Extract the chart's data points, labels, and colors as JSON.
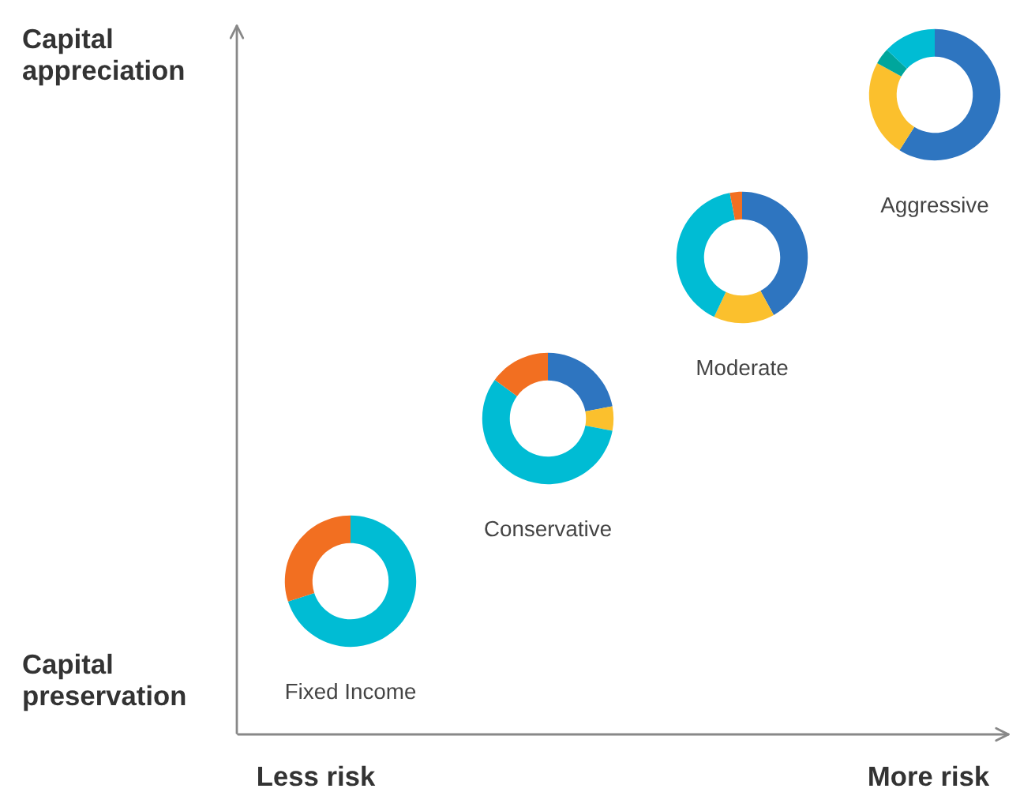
{
  "chart_data": [
    {
      "type": "other",
      "annotations": [
        "Capital\nappreciation",
        "Capital\npreservation",
        "Less risk",
        "More risk"
      ]
    },
    {
      "type": "donut",
      "title": "Fixed Income",
      "categories": [
        null,
        null
      ],
      "values": [
        70,
        30
      ],
      "colors": [
        "#00bcd4",
        "#f26f21"
      ]
    },
    {
      "type": "donut",
      "title": "Conservative",
      "categories": [
        null,
        null,
        null,
        null
      ],
      "values": [
        22,
        6,
        57,
        15
      ],
      "colors": [
        "#2e75c0",
        "#fbc02d",
        "#00bcd4",
        "#f26f21"
      ]
    },
    {
      "type": "donut",
      "title": "Moderate",
      "categories": [
        null,
        null,
        null,
        null
      ],
      "values": [
        42,
        15,
        40,
        3
      ],
      "colors": [
        "#2e75c0",
        "#fbc02d",
        "#00bcd4",
        "#f26f21"
      ]
    },
    {
      "type": "donut",
      "title": "Aggressive",
      "categories": [
        null,
        null,
        null,
        null
      ],
      "values": [
        59,
        24,
        4,
        13
      ],
      "colors": [
        "#2e75c0",
        "#fbc02d",
        "#00a69c",
        "#00bcd4"
      ]
    }
  ]
}
